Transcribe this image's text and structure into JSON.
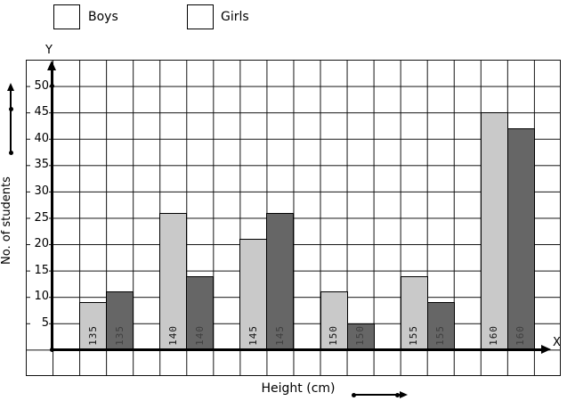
{
  "legend": {
    "boys_label": "Boys",
    "girls_label": "Girls"
  },
  "axes": {
    "y_title": "No. of students",
    "x_title": "Height (cm)",
    "y_letter": "Y",
    "x_letter": "X",
    "y_ticks": [
      5,
      10,
      15,
      20,
      25,
      30,
      35,
      40,
      45,
      50
    ]
  },
  "colors": {
    "boys": "#c9c9c9",
    "girls": "#666666",
    "grid": "#111111",
    "axis": "#000000"
  },
  "chart_data": {
    "type": "bar",
    "categories": [
      "135",
      "140",
      "145",
      "150",
      "155",
      "160"
    ],
    "series": [
      {
        "name": "Boys",
        "values": [
          9,
          26,
          21,
          11,
          14,
          45
        ]
      },
      {
        "name": "Girls",
        "values": [
          11,
          14,
          26,
          5,
          9,
          42
        ]
      }
    ],
    "title": "",
    "xlabel": "Height (cm)",
    "ylabel": "No. of students",
    "ylim": [
      0,
      55
    ],
    "y_tick_step": 5,
    "grid": true,
    "legend_position": "top-left",
    "bar_category_labels": "rotated 90deg, drawn inside each bar near its base"
  }
}
